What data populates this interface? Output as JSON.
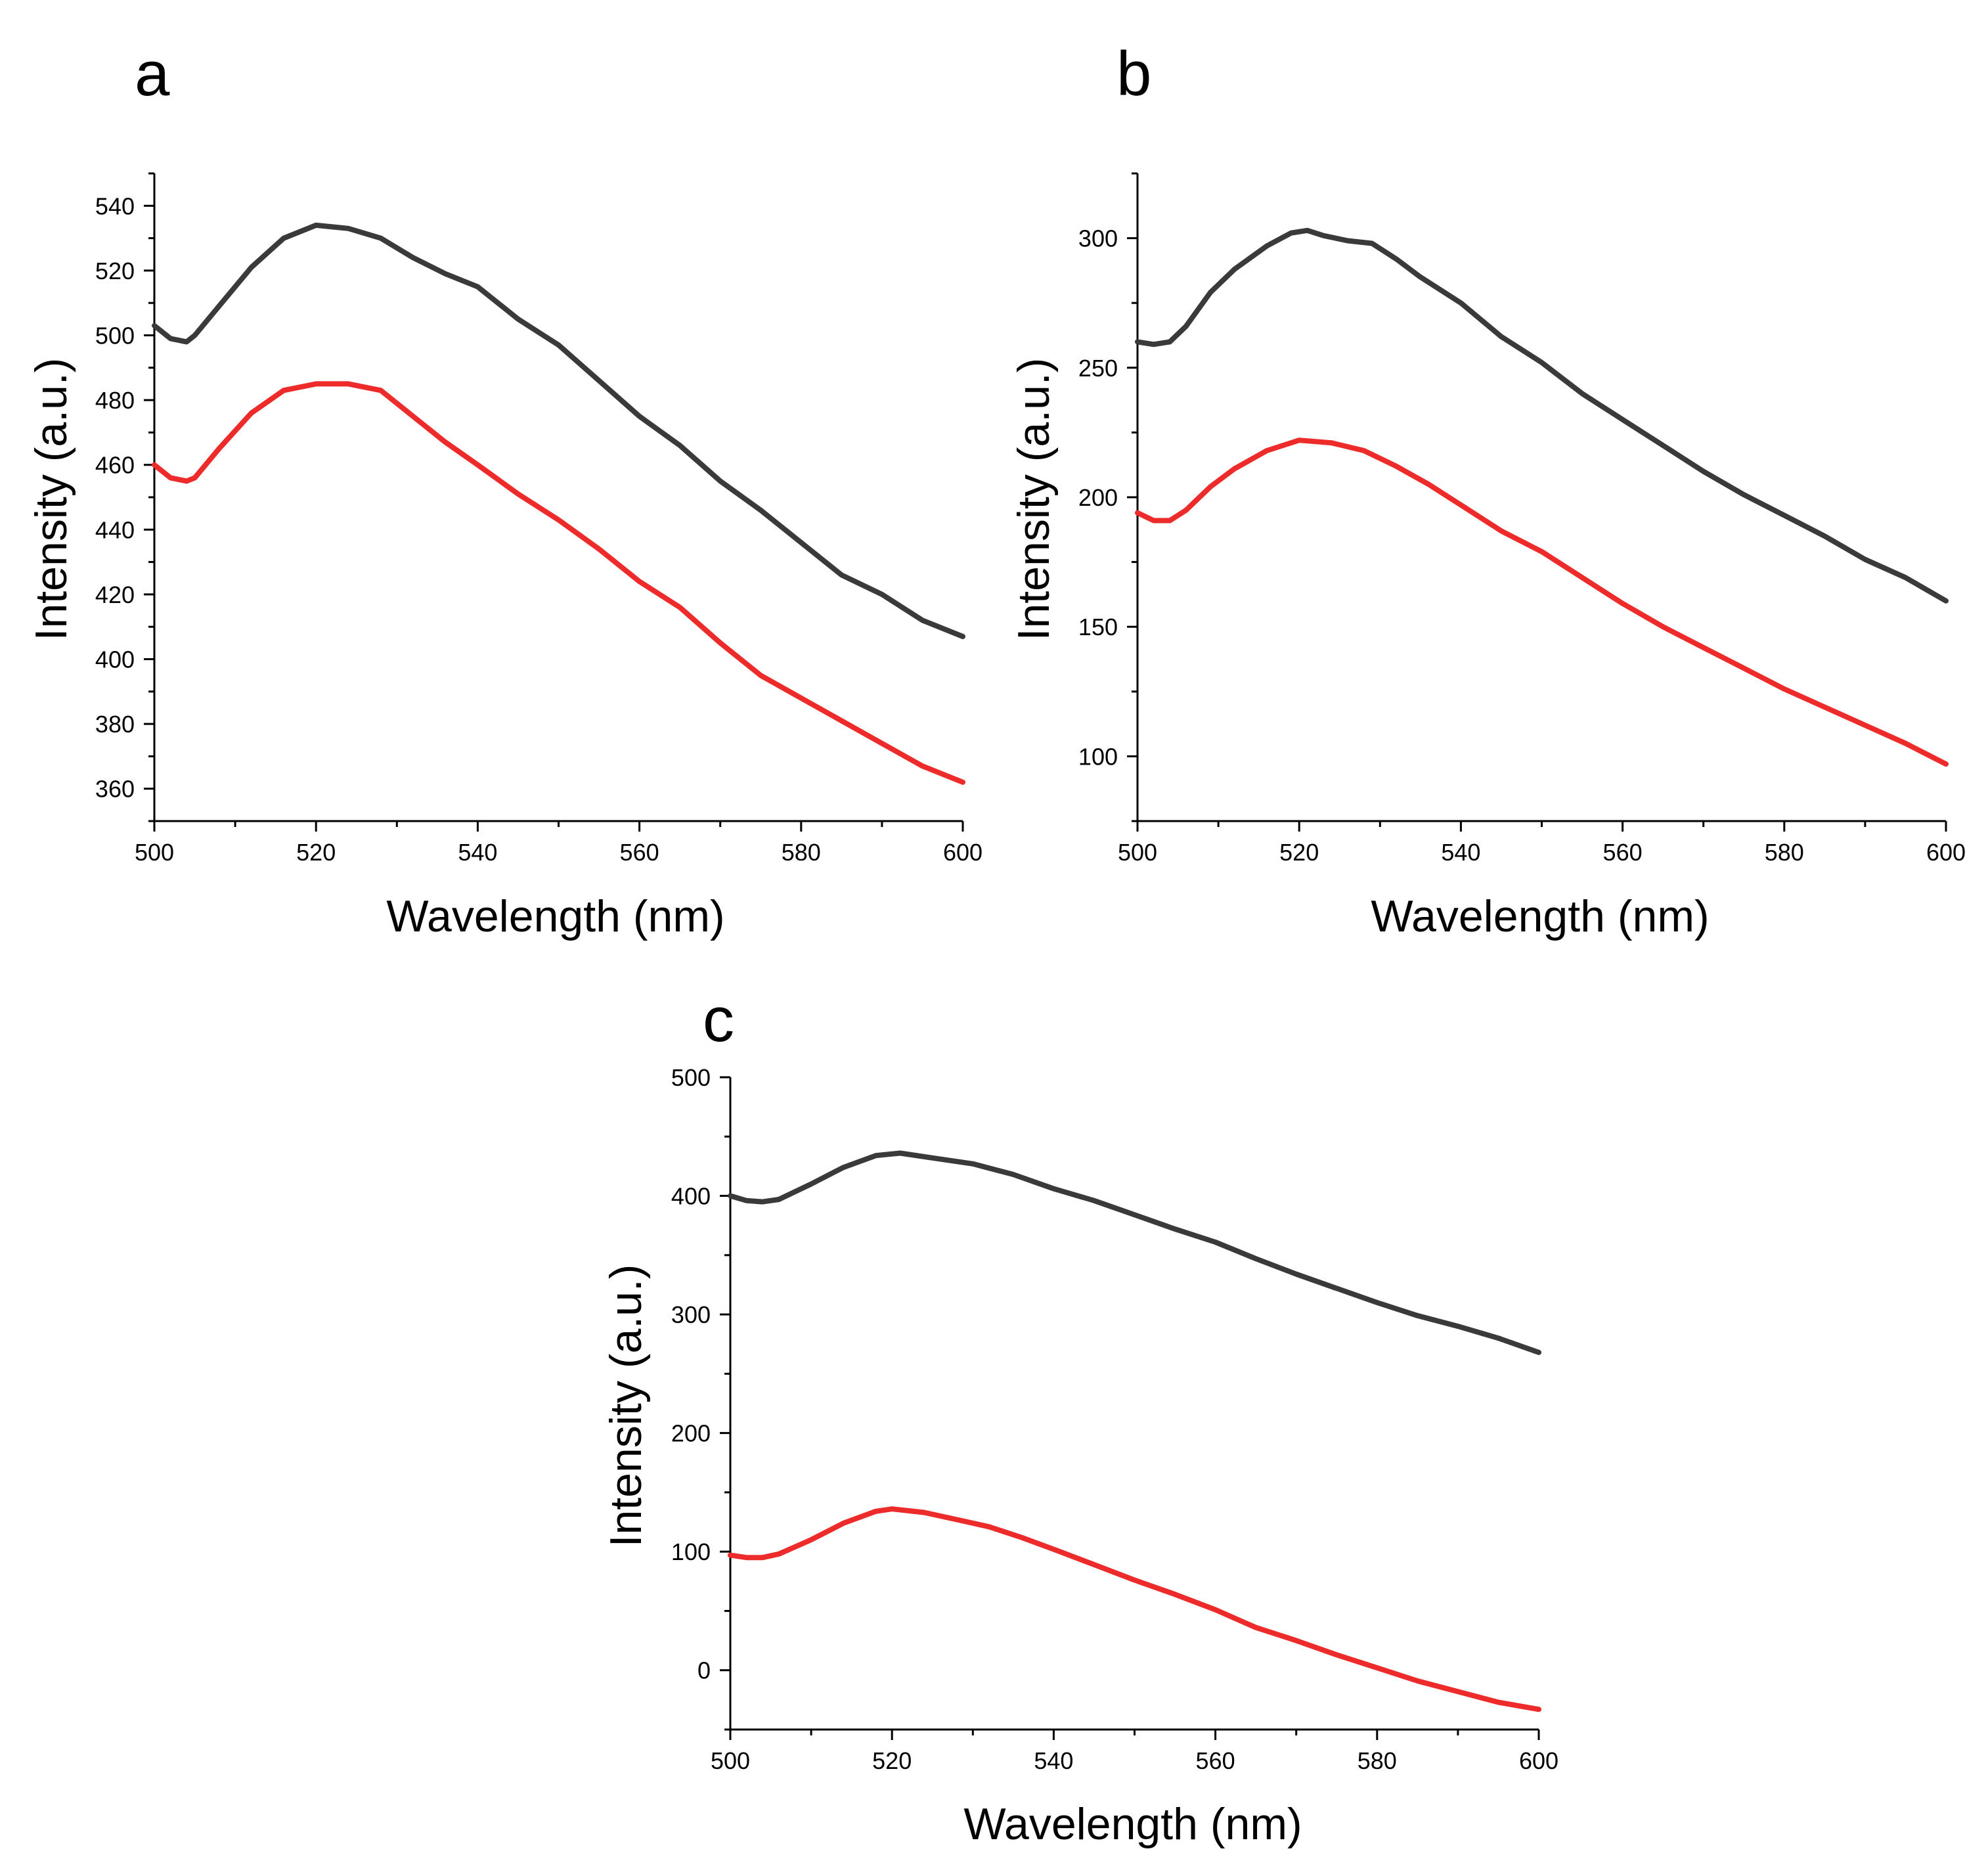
{
  "chart_data": [
    {
      "panel_label": "a",
      "type": "line",
      "xlabel": "Wavelength (nm)",
      "ylabel": "Intensity (a.u.)",
      "xlim": [
        500,
        600
      ],
      "ylim": [
        350,
        550
      ],
      "xticks": [
        500,
        520,
        540,
        560,
        580,
        600
      ],
      "xtick_labels": [
        "500",
        "520",
        "540",
        "560",
        "580",
        "600"
      ],
      "yticks": [
        360,
        380,
        400,
        420,
        440,
        460,
        480,
        500,
        520,
        540
      ],
      "ytick_labels": [
        "360",
        "380",
        "400",
        "420",
        "440",
        "460",
        "480",
        "500",
        "520",
        "540"
      ],
      "y_minor_step": 10,
      "x_minor_step": 10,
      "series": [
        {
          "name": "black",
          "color": "#3a3a3a",
          "points": [
            [
              500,
              503
            ],
            [
              502,
              499
            ],
            [
              504,
              498
            ],
            [
              505,
              500
            ],
            [
              508,
              509
            ],
            [
              512,
              521
            ],
            [
              516,
              530
            ],
            [
              520,
              534
            ],
            [
              524,
              533
            ],
            [
              528,
              530
            ],
            [
              532,
              524
            ],
            [
              536,
              519
            ],
            [
              540,
              515
            ],
            [
              545,
              505
            ],
            [
              550,
              497
            ],
            [
              555,
              486
            ],
            [
              560,
              475
            ],
            [
              565,
              466
            ],
            [
              570,
              455
            ],
            [
              575,
              446
            ],
            [
              580,
              436
            ],
            [
              585,
              426
            ],
            [
              590,
              420
            ],
            [
              595,
              412
            ],
            [
              600,
              407
            ]
          ]
        },
        {
          "name": "red",
          "color": "#ee2b2b",
          "points": [
            [
              500,
              460
            ],
            [
              502,
              456
            ],
            [
              504,
              455
            ],
            [
              505,
              456
            ],
            [
              508,
              465
            ],
            [
              512,
              476
            ],
            [
              516,
              483
            ],
            [
              520,
              485
            ],
            [
              524,
              485
            ],
            [
              528,
              483
            ],
            [
              532,
              475
            ],
            [
              536,
              467
            ],
            [
              540,
              460
            ],
            [
              545,
              451
            ],
            [
              550,
              443
            ],
            [
              555,
              434
            ],
            [
              560,
              424
            ],
            [
              565,
              416
            ],
            [
              570,
              405
            ],
            [
              575,
              395
            ],
            [
              580,
              388
            ],
            [
              585,
              381
            ],
            [
              590,
              374
            ],
            [
              595,
              367
            ],
            [
              600,
              362
            ]
          ]
        }
      ]
    },
    {
      "panel_label": "b",
      "type": "line",
      "xlabel": "Wavelength (nm)",
      "ylabel": "Intensity (a.u.)",
      "xlim": [
        500,
        600
      ],
      "ylim": [
        75,
        325
      ],
      "xticks": [
        500,
        520,
        540,
        560,
        580,
        600
      ],
      "xtick_labels": [
        "500",
        "520",
        "540",
        "560",
        "580",
        "600"
      ],
      "yticks": [
        100,
        150,
        200,
        250,
        300
      ],
      "ytick_labels": [
        "100",
        "150",
        "200",
        "250",
        "300"
      ],
      "y_minor_step": 25,
      "x_minor_step": 10,
      "series": [
        {
          "name": "black",
          "color": "#3a3a3a",
          "points": [
            [
              500,
              260
            ],
            [
              502,
              259
            ],
            [
              504,
              260
            ],
            [
              506,
              266
            ],
            [
              509,
              279
            ],
            [
              512,
              288
            ],
            [
              516,
              297
            ],
            [
              519,
              302
            ],
            [
              521,
              303
            ],
            [
              523,
              301
            ],
            [
              526,
              299
            ],
            [
              529,
              298
            ],
            [
              532,
              292
            ],
            [
              535,
              285
            ],
            [
              540,
              275
            ],
            [
              545,
              262
            ],
            [
              550,
              252
            ],
            [
              555,
              240
            ],
            [
              560,
              230
            ],
            [
              565,
              220
            ],
            [
              570,
              210
            ],
            [
              575,
              201
            ],
            [
              580,
              193
            ],
            [
              585,
              185
            ],
            [
              590,
              176
            ],
            [
              595,
              169
            ],
            [
              600,
              160
            ]
          ]
        },
        {
          "name": "red",
          "color": "#ee2b2b",
          "points": [
            [
              500,
              194
            ],
            [
              502,
              191
            ],
            [
              504,
              191
            ],
            [
              506,
              195
            ],
            [
              509,
              204
            ],
            [
              512,
              211
            ],
            [
              516,
              218
            ],
            [
              520,
              222
            ],
            [
              524,
              221
            ],
            [
              528,
              218
            ],
            [
              532,
              212
            ],
            [
              536,
              205
            ],
            [
              540,
              197
            ],
            [
              545,
              187
            ],
            [
              550,
              179
            ],
            [
              555,
              169
            ],
            [
              560,
              159
            ],
            [
              565,
              150
            ],
            [
              570,
              142
            ],
            [
              575,
              134
            ],
            [
              580,
              126
            ],
            [
              585,
              119
            ],
            [
              590,
              112
            ],
            [
              595,
              105
            ],
            [
              600,
              97
            ]
          ]
        }
      ]
    },
    {
      "panel_label": "c",
      "type": "line",
      "xlabel": "Wavelength (nm)",
      "ylabel": "Intensity (a.u.)",
      "xlim": [
        500,
        600
      ],
      "ylim": [
        -50,
        500
      ],
      "xticks": [
        500,
        520,
        540,
        560,
        580,
        600
      ],
      "xtick_labels": [
        "500",
        "520",
        "540",
        "560",
        "580",
        "600"
      ],
      "yticks": [
        0,
        100,
        200,
        300,
        400,
        500
      ],
      "ytick_labels": [
        "0",
        "100",
        "200",
        "300",
        "400",
        "500"
      ],
      "y_minor_step": 50,
      "x_minor_step": 10,
      "series": [
        {
          "name": "black",
          "color": "#3a3a3a",
          "points": [
            [
              500,
              400
            ],
            [
              502,
              396
            ],
            [
              504,
              395
            ],
            [
              506,
              397
            ],
            [
              510,
              410
            ],
            [
              514,
              424
            ],
            [
              518,
              434
            ],
            [
              521,
              436
            ],
            [
              525,
              432
            ],
            [
              530,
              427
            ],
            [
              535,
              418
            ],
            [
              540,
              406
            ],
            [
              545,
              396
            ],
            [
              550,
              384
            ],
            [
              555,
              372
            ],
            [
              560,
              361
            ],
            [
              565,
              347
            ],
            [
              570,
              334
            ],
            [
              575,
              322
            ],
            [
              580,
              310
            ],
            [
              585,
              299
            ],
            [
              590,
              290
            ],
            [
              595,
              280
            ],
            [
              600,
              268
            ]
          ]
        },
        {
          "name": "red",
          "color": "#ee2b2b",
          "points": [
            [
              500,
              97
            ],
            [
              502,
              95
            ],
            [
              504,
              95
            ],
            [
              506,
              98
            ],
            [
              510,
              110
            ],
            [
              514,
              124
            ],
            [
              518,
              134
            ],
            [
              520,
              136
            ],
            [
              524,
              133
            ],
            [
              528,
              127
            ],
            [
              532,
              121
            ],
            [
              536,
              112
            ],
            [
              540,
              102
            ],
            [
              545,
              89
            ],
            [
              550,
              76
            ],
            [
              555,
              64
            ],
            [
              560,
              51
            ],
            [
              565,
              36
            ],
            [
              570,
              25
            ],
            [
              575,
              13
            ],
            [
              580,
              2
            ],
            [
              585,
              -9
            ],
            [
              590,
              -18
            ],
            [
              595,
              -27
            ],
            [
              600,
              -33
            ]
          ]
        }
      ]
    }
  ]
}
